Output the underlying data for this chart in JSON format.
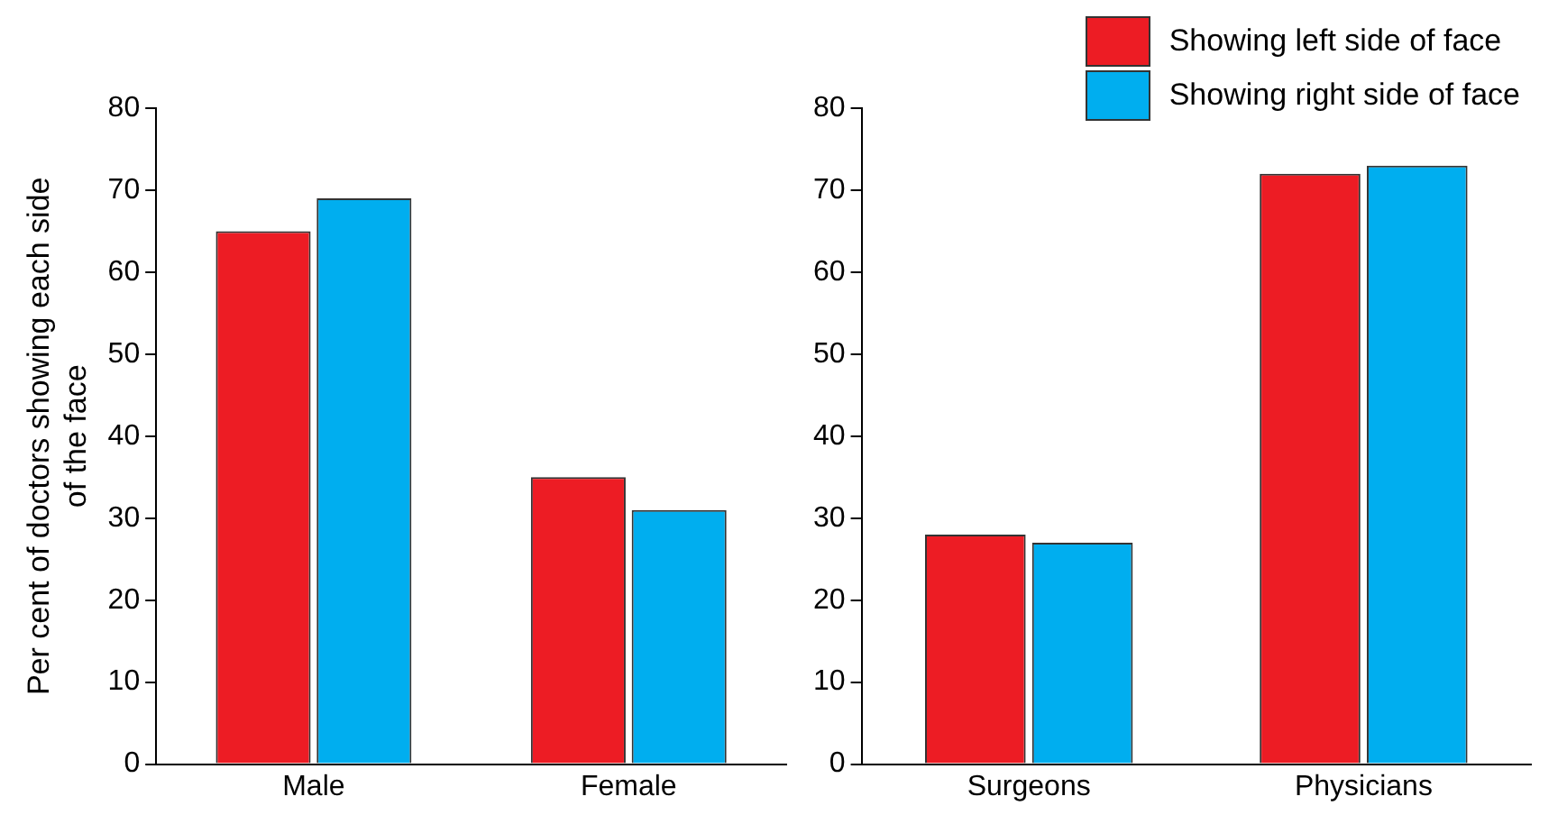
{
  "chart_data": [
    {
      "type": "bar",
      "ylabel": "Per cent of doctors showing each side of the face",
      "categories": [
        "Male",
        "Female"
      ],
      "series": [
        {
          "color": "#ed1c24",
          "values": [
            65,
            35
          ]
        },
        {
          "color": "#00aeef",
          "values": [
            69,
            31
          ]
        }
      ],
      "ylim": [
        0,
        80
      ],
      "yticks": [
        0,
        10,
        20,
        30,
        40,
        50,
        60,
        70,
        80
      ],
      "grid": false,
      "legend": false
    },
    {
      "type": "bar",
      "categories": [
        "Surgeons",
        "Physicians"
      ],
      "series": [
        {
          "name": "Showing left side of face",
          "color": "#ed1c24",
          "values": [
            28,
            72
          ]
        },
        {
          "name": "Showing right side of face",
          "color": "#00aeef",
          "values": [
            27,
            73
          ]
        }
      ],
      "ylim": [
        0,
        80
      ],
      "yticks": [
        0,
        10,
        20,
        30,
        40,
        50,
        60,
        70,
        80
      ],
      "grid": false,
      "legend": "top right"
    }
  ]
}
